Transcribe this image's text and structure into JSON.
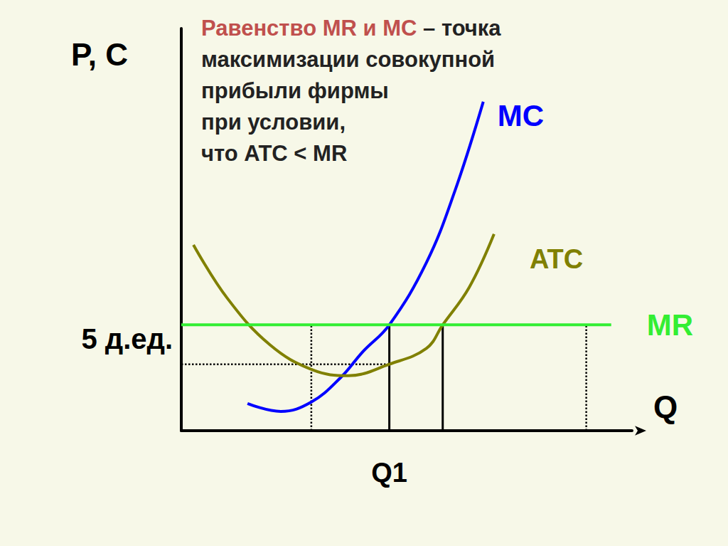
{
  "chart_data": {
    "type": "line",
    "title": [
      {
        "text": "Равенство MR и MC",
        "color": "#c0504d"
      },
      {
        "text": " – точка\nмаксимизации совокупной\nприбыли фирмы\nпри условии,\nчто ATC < MR",
        "color": "#222222"
      }
    ],
    "x_label": "Q",
    "y_label": "P, C",
    "xlim": [
      0,
      13
    ],
    "ylim": [
      0,
      19
    ],
    "xticks": [
      {
        "value": 6,
        "label": "Q1"
      }
    ],
    "yticks": [
      {
        "value": 5,
        "label": "5 д.ед."
      }
    ],
    "grid": false,
    "series": [
      {
        "name": "MC",
        "color": "#0000ff",
        "x": [
          1.91,
          2.87,
          3.75,
          4.61,
          5.23,
          6.0,
          7.07,
          7.89,
          8.71
        ],
        "values": [
          1.28,
          0.91,
          1.35,
          2.53,
          3.72,
          5.0,
          7.94,
          11.32,
          15.54
        ]
      },
      {
        "name": "ATC",
        "color": "#808000",
        "x": [
          0.35,
          1.33,
          2.56,
          3.79,
          4.82,
          6.0,
          7.07,
          7.54,
          8.3,
          9.02
        ],
        "values": [
          8.78,
          6.25,
          4.05,
          2.87,
          2.6,
          3.14,
          3.89,
          5.0,
          6.76,
          9.29
        ]
      },
      {
        "name": "MR",
        "color": "#33ee33",
        "x": [
          0,
          12.4
        ],
        "values": [
          5,
          5
        ]
      }
    ],
    "reference_lines": [
      {
        "x": [
          3.75,
          3.75
        ],
        "values": [
          0,
          5
        ],
        "line_style": "dotted"
      },
      {
        "x": [
          6.0,
          6.0
        ],
        "values": [
          0,
          5
        ],
        "line_style": "solid"
      },
      {
        "x": [
          7.54,
          7.54
        ],
        "values": [
          0,
          5
        ],
        "line_style": "solid"
      },
      {
        "x": [
          11.68,
          11.68
        ],
        "values": [
          0,
          5
        ],
        "line_style": "dotted"
      },
      {
        "x": [
          0,
          6.0
        ],
        "values": [
          3.14,
          3.14
        ],
        "line_style": "dotted"
      }
    ]
  }
}
